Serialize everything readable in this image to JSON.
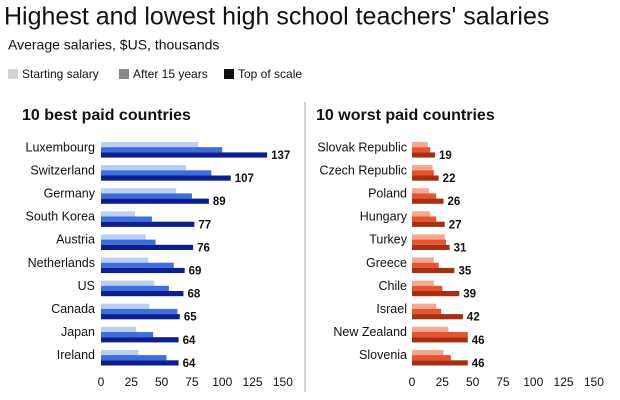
{
  "title": "Highest and lowest high school teachers' salaries",
  "subtitle": "Average salaries, $US, thousands",
  "legend": {
    "colors": [
      "#d4d4d4",
      "#8a8a8a",
      "#111111"
    ]
  },
  "chart_data": [
    {
      "type": "bar",
      "orientation": "horizontal",
      "title": "10 best paid countries",
      "categories": [
        "Luxembourg",
        "Switzerland",
        "Germany",
        "South Korea",
        "Austria",
        "Netherlands",
        "US",
        "Canada",
        "Japan",
        "Ireland"
      ],
      "series": [
        {
          "name": "Starting salary",
          "color": "#b9cff4",
          "values": [
            80,
            70,
            62,
            28,
            37,
            39,
            44,
            40,
            29,
            31
          ]
        },
        {
          "name": "After 15 years",
          "color": "#3d6ee0",
          "values": [
            100,
            91,
            75,
            42,
            45,
            60,
            56,
            63,
            43,
            54
          ]
        },
        {
          "name": "Top of scale",
          "color": "#0d1f8c",
          "values": [
            137,
            107,
            89,
            77,
            76,
            69,
            68,
            65,
            64,
            64
          ]
        }
      ],
      "xlim": [
        0,
        160
      ],
      "xticks": [
        0,
        25,
        50,
        75,
        100,
        125,
        150
      ]
    },
    {
      "type": "bar",
      "orientation": "horizontal",
      "title": "10 worst paid countries",
      "categories": [
        "Slovak Republic",
        "Czech Republic",
        "Poland",
        "Hungary",
        "Turkey",
        "Greece",
        "Chile",
        "Israel",
        "New Zealand",
        "Slovenia"
      ],
      "series": [
        {
          "name": "Starting salary",
          "color": "#f6a78f",
          "values": [
            13,
            17,
            14,
            15,
            27,
            18,
            18,
            20,
            30,
            26
          ]
        },
        {
          "name": "After 15 years",
          "color": "#e8532f",
          "values": [
            15,
            18,
            20,
            20,
            28,
            22,
            25,
            24,
            46,
            32
          ]
        },
        {
          "name": "Top of scale",
          "color": "#a52f10",
          "values": [
            19,
            22,
            26,
            27,
            31,
            35,
            39,
            42,
            46,
            46
          ]
        }
      ],
      "xlim": [
        0,
        160
      ],
      "xticks": [
        0,
        25,
        50,
        75,
        100,
        125,
        150
      ]
    }
  ]
}
